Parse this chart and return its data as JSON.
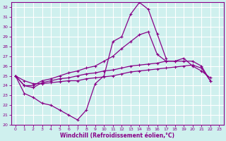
{
  "xlabel": "Windchill (Refroidissement éolien,°C)",
  "bg_color": "#cff0ee",
  "grid_color": "#ffffff",
  "line_color": "#880088",
  "xlim": [
    -0.5,
    23.5
  ],
  "ylim": [
    20,
    32.5
  ],
  "yticks": [
    20,
    21,
    22,
    23,
    24,
    25,
    26,
    27,
    28,
    29,
    30,
    31,
    32
  ],
  "xticks": [
    0,
    1,
    2,
    3,
    4,
    5,
    6,
    7,
    8,
    9,
    10,
    11,
    12,
    13,
    14,
    15,
    16,
    17,
    18,
    19,
    20,
    21,
    22,
    23
  ],
  "series": [
    [
      25.0,
      23.2,
      22.8,
      22.2,
      22.0,
      21.5,
      21.0,
      20.5,
      21.5,
      24.2,
      25.0,
      28.5,
      29.0,
      31.3,
      32.5,
      31.8,
      29.3,
      26.8,
      null,
      null,
      null,
      null,
      null
    ],
    [
      25.0,
      24.0,
      23.8,
      24.3,
      24.5,
      24.7,
      24.8,
      25.0,
      25.2,
      25.3,
      25.5,
      25.6,
      25.8,
      26.0,
      26.1,
      26.2,
      26.3,
      26.5,
      26.5,
      26.8,
      26.0,
      25.5,
      24.8
    ],
    [
      25.0,
      24.5,
      24.2,
      24.2,
      24.3,
      24.4,
      24.5,
      24.5,
      24.7,
      24.8,
      24.9,
      25.0,
      25.2,
      25.4,
      25.5,
      25.6,
      25.7,
      25.8,
      25.9,
      26.0,
      26.1,
      25.8,
      24.5
    ],
    [
      25.0,
      24.0,
      24.0,
      24.5,
      24.7,
      25.0,
      25.3,
      25.5,
      25.8,
      26.0,
      26.5,
      27.0,
      27.8,
      28.5,
      29.2,
      29.5,
      27.2,
      26.5,
      26.5,
      26.5,
      26.5,
      26.0,
      24.5
    ]
  ]
}
